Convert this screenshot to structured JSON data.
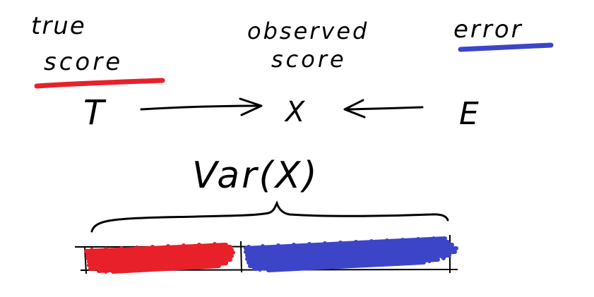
{
  "labels": {
    "true_score_line1": "true",
    "true_score_line2": "score",
    "observed_line1": "observed",
    "observed_line2": "score",
    "error": "error",
    "T": "T",
    "X": "X",
    "E": "E",
    "var": "Var(X)"
  },
  "colors": {
    "ink": "#000000",
    "true_score": "#e8202a",
    "error": "#3c45c8",
    "background": "#ffffff"
  },
  "bar": {
    "true_score_fraction": 0.43,
    "error_fraction": 0.57
  }
}
